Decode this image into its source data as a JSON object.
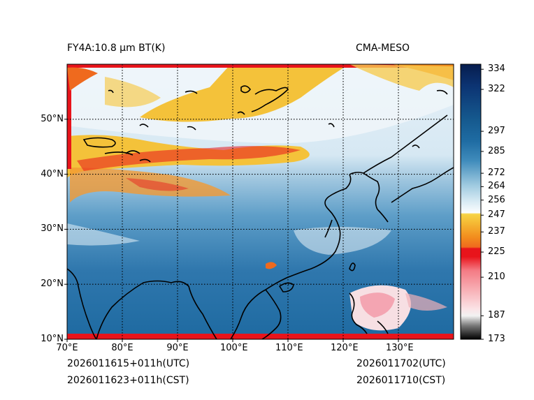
{
  "header": {
    "left_title": "FY4A:10.8 µm BT(K)",
    "right_title": "CMA-MESO"
  },
  "footer": {
    "issue_utc": "2026011615+011h(UTC)",
    "issue_cst": "2026011623+011h(CST)",
    "valid_utc": "2026011702(UTC)",
    "valid_cst": "2026011710(CST)"
  },
  "map": {
    "lon_ticks": [
      {
        "value": 70,
        "label": "70°E"
      },
      {
        "value": 80,
        "label": "80°E"
      },
      {
        "value": 90,
        "label": "90°E"
      },
      {
        "value": 100,
        "label": "100°E"
      },
      {
        "value": 110,
        "label": "110°E"
      },
      {
        "value": 120,
        "label": "120°E"
      },
      {
        "value": 130,
        "label": "130°E"
      }
    ],
    "lat_ticks": [
      {
        "value": 10,
        "label": "10°N"
      },
      {
        "value": 20,
        "label": "20°N"
      },
      {
        "value": 30,
        "label": "30°N"
      },
      {
        "value": 40,
        "label": "40°N"
      },
      {
        "value": 50,
        "label": "50°N"
      }
    ],
    "lon_range": [
      70,
      140
    ],
    "lat_range": [
      10,
      60
    ]
  },
  "colorbar": {
    "min": 173,
    "max": 337,
    "ticks": [
      {
        "value": 334,
        "label": "334"
      },
      {
        "value": 322,
        "label": "322"
      },
      {
        "value": 297,
        "label": "297"
      },
      {
        "value": 285,
        "label": "285"
      },
      {
        "value": 272,
        "label": "272"
      },
      {
        "value": 264,
        "label": "264"
      },
      {
        "value": 256,
        "label": "256"
      },
      {
        "value": 247,
        "label": "247"
      },
      {
        "value": 237,
        "label": "237"
      },
      {
        "value": 225,
        "label": "225"
      },
      {
        "value": 210,
        "label": "210"
      },
      {
        "value": 187,
        "label": "187"
      },
      {
        "value": 173,
        "label": "173"
      }
    ]
  },
  "colors": {
    "deep_blue": "#1f5f96",
    "mid_blue": "#4f90bd",
    "light_blue": "#a9cfe4",
    "white": "#f4f8fb",
    "yellow": "#f4c23a",
    "orange": "#ef8a1f",
    "red": "#e8141b"
  }
}
